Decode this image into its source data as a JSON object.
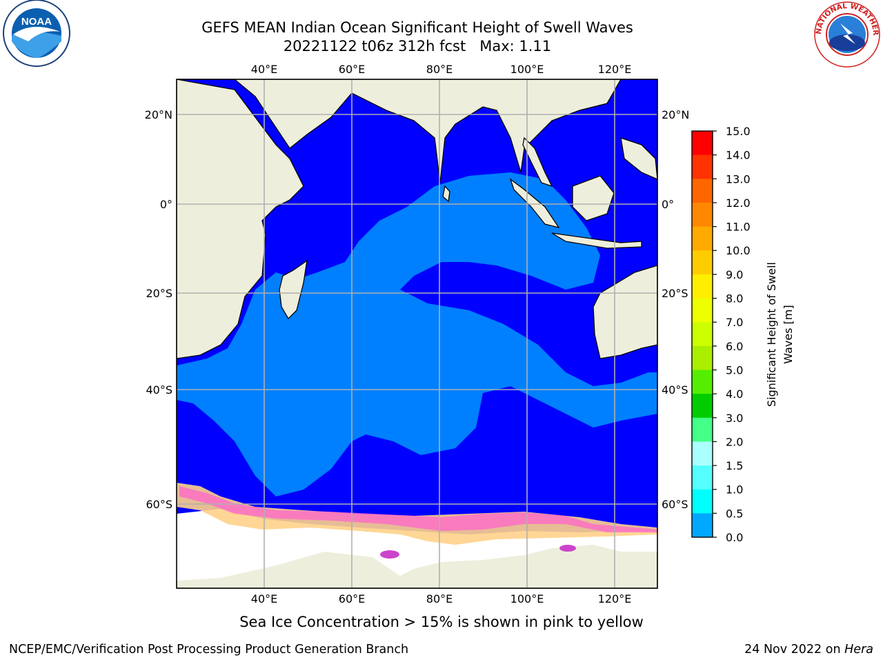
{
  "header": {
    "title_line1": "GEFS MEAN Indian Ocean Significant Height of Swell Waves",
    "title_line2": "20221122 t06z 312h fcst   Max: 1.11"
  },
  "map": {
    "lon_ticks": [
      "40°E",
      "60°E",
      "80°E",
      "100°E",
      "120°E"
    ],
    "lat_ticks_left": [
      "20°N",
      "0°",
      "20°S",
      "40°S",
      "60°S"
    ],
    "lat_ticks_right": [
      "20°N",
      "0°",
      "20°S",
      "40°S",
      "60°S"
    ],
    "colors": {
      "land": "#eeeedc",
      "ocean_low": "#0000ff",
      "ocean_mid": "#0080ff",
      "ice": "#ffffff",
      "grid": "#b0b0b0"
    }
  },
  "colorbar": {
    "label": "Significant Height of Swell Waves [m]",
    "ticks": [
      "15.0",
      "14.0",
      "13.0",
      "12.0",
      "11.0",
      "10.0",
      "9.0",
      "8.0",
      "7.0",
      "6.0",
      "5.0",
      "4.0",
      "3.0",
      "2.0",
      "1.5",
      "1.0",
      "0.5",
      "0.0"
    ],
    "colors": [
      "#ff0000",
      "#ff3300",
      "#ff6600",
      "#ff8800",
      "#ffaa00",
      "#ffcc00",
      "#ffee00",
      "#eeff00",
      "#ccff00",
      "#aaee00",
      "#55ee00",
      "#00cc00",
      "#44ff88",
      "#aaffff",
      "#55ffff",
      "#00ffff",
      "#00a8ff",
      "#0080ff",
      "#0000ff"
    ]
  },
  "footer": {
    "caption": "Sea Ice Concentration > 15% is shown in pink to yellow",
    "credit": "NCEP/EMC/Verification Post Processing Product Generation Branch",
    "date": "24 Nov 2022 on",
    "host": "Hera"
  },
  "logos": {
    "noaa_text": "NOAA",
    "nws_text": "NATIONAL WEATHER SERVICE"
  }
}
